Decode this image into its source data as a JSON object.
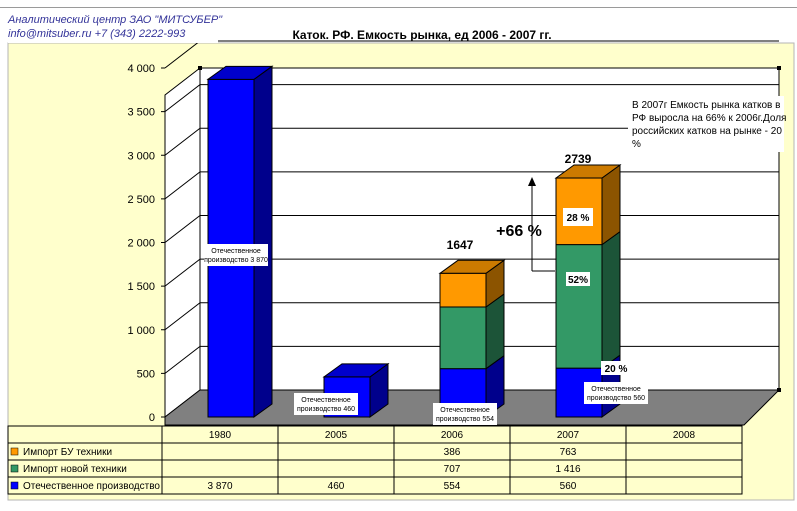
{
  "header": {
    "company": "Аналитический центр ЗАО \"МИТСУБЕР\"",
    "contact": "info@mitsuber.ru +7 (343) 2222-993"
  },
  "colors": {
    "background": "#ffffcc",
    "floor": "#808080",
    "domestic": "#0000ff",
    "new_import": "#339966",
    "used_import": "#ff9900"
  },
  "chart_data": {
    "type": "bar",
    "stacked": true,
    "three_d": true,
    "title": "Каток. РФ. Емкость рынка, ед 2006 - 2007 гг.",
    "categories": [
      "1980",
      "2005",
      "2006",
      "2007",
      "2008"
    ],
    "series": [
      {
        "name": "Отечественное производство",
        "color": "#0000ff",
        "values": [
          3870,
          460,
          554,
          560,
          null
        ]
      },
      {
        "name": "Импорт новой техники",
        "color": "#339966",
        "values": [
          null,
          null,
          707,
          1416,
          null
        ]
      },
      {
        "name": "Импорт БУ техники",
        "color": "#ff9900",
        "values": [
          null,
          null,
          386,
          763,
          null
        ]
      }
    ],
    "ylim": [
      0,
      4000
    ],
    "yticks": [
      "0",
      "500",
      "1 000",
      "1 500",
      "2 000",
      "2 500",
      "3 000",
      "3 500",
      "4 000"
    ],
    "grid": true,
    "legend": "data-table-below",
    "totals": [
      "1647",
      "2739"
    ],
    "growth_label": "+66  %",
    "note": "В 2007г  Емкость рынка катков в РФ выросла на 66% к 2006г.Доля российских катков на рынке - 20 %",
    "bar_labels": [
      "Отечественное производство 3 870",
      "Отечественное производство 460",
      "Отечественное производство 554",
      "Отечественное производство 560"
    ],
    "share_labels": [
      "28 %",
      "52%",
      "20 %"
    ],
    "table": {
      "rows": [
        {
          "label": "Импорт БУ техники",
          "color": "#ff9900",
          "cells": [
            "",
            "",
            "386",
            "763",
            ""
          ]
        },
        {
          "label": "Импорт новой техники",
          "color": "#339966",
          "cells": [
            "",
            "",
            "707",
            "1 416",
            ""
          ]
        },
        {
          "label": "Отечественное производство",
          "color": "#0000ff",
          "cells": [
            "3 870",
            "460",
            "554",
            "560",
            ""
          ]
        }
      ]
    }
  }
}
